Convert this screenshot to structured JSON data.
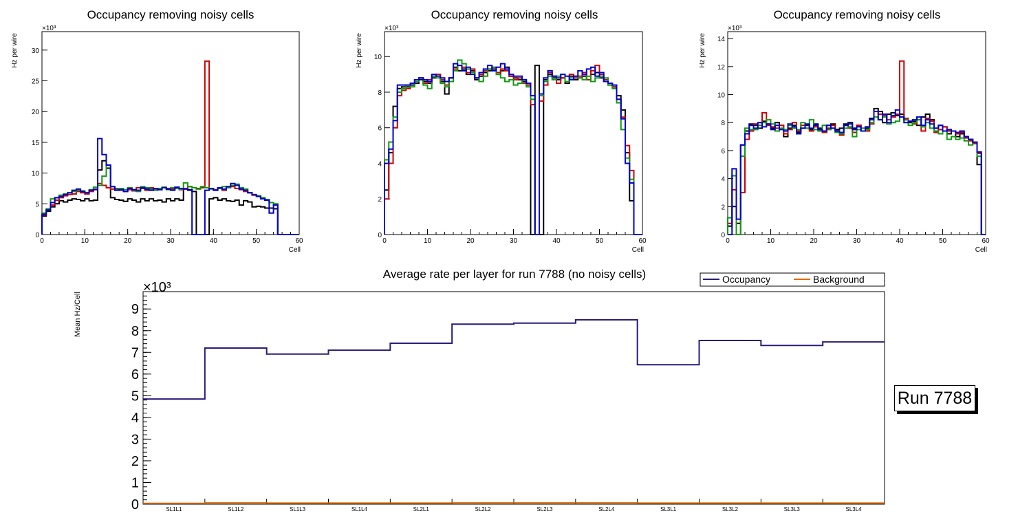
{
  "colors": {
    "black": "#000000",
    "red": "#cc0000",
    "green": "#109910",
    "blue": "#0000cc",
    "occupancy": "#2b1a7a",
    "background": "#e06a00"
  },
  "run_label": "Run 7788",
  "chart_data": [
    {
      "type": "line",
      "title": "Occupancy removing noisy cells",
      "xlabel": "Cell",
      "ylabel": "Hz per wire",
      "exponent_label": "×10³",
      "xlim": [
        0,
        60
      ],
      "ylim": [
        0,
        33
      ],
      "xticks": [
        0,
        10,
        20,
        30,
        40,
        50,
        60
      ],
      "yticks": [
        0,
        5,
        10,
        15,
        20,
        25,
        30
      ],
      "series": [
        {
          "name": "black",
          "color": "#000000",
          "values": [
            3.0,
            3.8,
            4.5,
            5.0,
            5.5,
            5.3,
            5.6,
            5.8,
            5.7,
            5.5,
            5.8,
            5.5,
            5.6,
            10.5,
            12.0,
            10.8,
            6.0,
            5.7,
            5.6,
            5.4,
            5.8,
            5.6,
            5.3,
            5.8,
            5.5,
            5.8,
            5.5,
            5.6,
            5.3,
            5.8,
            5.5,
            5.8,
            5.6,
            7.5,
            7.3,
            7.0,
            0,
            0,
            0,
            5.8,
            6.0,
            5.6,
            5.8,
            5.5,
            5.4,
            5.6,
            4.8,
            5.5,
            5.3,
            4.5,
            4.6,
            4.5,
            4.3,
            4.3,
            4.2,
            0,
            0,
            0,
            0,
            0
          ]
        },
        {
          "name": "red",
          "color": "#cc0000",
          "values": [
            3.2,
            4.0,
            4.8,
            5.6,
            6.0,
            6.3,
            6.5,
            6.6,
            7.0,
            6.8,
            6.6,
            7.0,
            7.4,
            8.3,
            8.0,
            7.6,
            7.4,
            7.5,
            7.2,
            7.0,
            7.3,
            7.1,
            7.6,
            7.5,
            7.2,
            7.6,
            7.4,
            7.3,
            7.7,
            7.5,
            7.4,
            7.6,
            7.3,
            7.5,
            7.8,
            7.6,
            7.5,
            7.6,
            28.2,
            7.5,
            7.3,
            7.5,
            7.2,
            7.6,
            7.8,
            7.5,
            7.3,
            7.0,
            6.8,
            6.4,
            6.3,
            6.0,
            5.6,
            5.2,
            4.8,
            0,
            0,
            0,
            0,
            0
          ]
        },
        {
          "name": "green",
          "color": "#109910",
          "values": [
            3.5,
            4.2,
            5.8,
            6.0,
            6.4,
            6.6,
            6.8,
            7.0,
            7.2,
            7.1,
            6.8,
            7.3,
            7.7,
            8.0,
            9.5,
            11.3,
            7.8,
            7.4,
            7.5,
            7.3,
            7.6,
            7.2,
            7.0,
            7.8,
            7.6,
            7.4,
            7.2,
            7.5,
            7.7,
            7.3,
            7.6,
            7.5,
            7.4,
            8.4,
            7.8,
            7.6,
            7.4,
            7.8,
            7.6,
            7.4,
            7.2,
            7.5,
            7.8,
            7.6,
            8.0,
            8.2,
            7.6,
            7.4,
            6.8,
            6.5,
            6.3,
            6.0,
            5.7,
            5.2,
            5.0,
            0,
            0,
            0,
            0,
            0
          ]
        },
        {
          "name": "blue",
          "color": "#0000cc",
          "values": [
            3.3,
            4.0,
            5.2,
            6.0,
            6.2,
            6.5,
            6.8,
            7.2,
            7.4,
            7.0,
            6.8,
            7.2,
            7.3,
            15.6,
            13.0,
            11.3,
            7.8,
            7.2,
            7.3,
            7.0,
            7.5,
            7.3,
            7.2,
            7.6,
            7.4,
            7.2,
            7.5,
            7.3,
            7.6,
            7.4,
            7.2,
            7.7,
            7.5,
            7.4,
            7.2,
            0,
            0,
            0,
            7.2,
            7.5,
            7.2,
            7.6,
            7.4,
            7.8,
            8.3,
            8.0,
            7.4,
            7.2,
            6.8,
            6.5,
            6.2,
            5.8,
            5.6,
            3.5,
            4.8,
            0,
            0,
            0,
            0,
            0
          ]
        }
      ]
    },
    {
      "type": "line",
      "title": "Occupancy removing noisy cells",
      "xlabel": "Cell",
      "ylabel": "Hz per wire",
      "exponent_label": "×10³",
      "xlim": [
        0,
        60
      ],
      "ylim": [
        0,
        11.4
      ],
      "xticks": [
        0,
        10,
        20,
        30,
        40,
        50,
        60
      ],
      "yticks": [
        0,
        2,
        4,
        6,
        8,
        10
      ],
      "series": [
        {
          "name": "black",
          "color": "#000000",
          "values": [
            2.5,
            4.6,
            7.2,
            8.2,
            8.3,
            8.3,
            8.4,
            8.5,
            8.7,
            8.6,
            8.5,
            8.8,
            9.0,
            8.6,
            7.9,
            8.8,
            9.4,
            9.2,
            9.3,
            9.0,
            9.2,
            8.7,
            8.9,
            9.1,
            9.2,
            9.3,
            9.0,
            9.2,
            9.4,
            8.9,
            8.8,
            8.7,
            8.6,
            8.4,
            0,
            9.5,
            0,
            8.7,
            9.0,
            8.8,
            8.7,
            8.8,
            8.5,
            8.9,
            8.7,
            8.8,
            8.9,
            8.7,
            9.0,
            9.1,
            8.8,
            8.6,
            8.4,
            8.3,
            7.8,
            7.0,
            4.6,
            1.9,
            0,
            0
          ]
        },
        {
          "name": "red",
          "color": "#cc0000",
          "values": [
            2.0,
            4.0,
            6.0,
            7.8,
            8.1,
            8.2,
            8.5,
            8.6,
            8.8,
            8.5,
            8.7,
            8.9,
            9.0,
            8.7,
            8.4,
            8.8,
            9.3,
            9.5,
            9.4,
            9.1,
            9.3,
            8.8,
            9.0,
            9.2,
            9.3,
            9.4,
            9.1,
            9.3,
            9.2,
            8.9,
            8.7,
            8.8,
            8.5,
            8.4,
            7.3,
            0,
            7.5,
            8.4,
            9.1,
            8.9,
            8.5,
            8.8,
            8.6,
            9.0,
            8.8,
            8.9,
            9.1,
            8.7,
            9.2,
            9.5,
            9.0,
            8.7,
            8.5,
            8.3,
            7.6,
            6.6,
            5.0,
            3.6,
            0,
            0
          ]
        },
        {
          "name": "green",
          "color": "#109910",
          "values": [
            4.2,
            5.2,
            6.6,
            8.0,
            8.2,
            8.4,
            8.3,
            8.6,
            8.8,
            8.4,
            8.2,
            8.9,
            8.8,
            8.5,
            8.3,
            8.6,
            9.2,
            9.8,
            9.6,
            9.3,
            9.1,
            8.8,
            8.6,
            8.9,
            9.3,
            9.4,
            9.0,
            8.8,
            8.6,
            8.7,
            8.4,
            8.5,
            8.7,
            8.3,
            7.6,
            0,
            7.8,
            8.6,
            8.9,
            8.7,
            8.9,
            9.0,
            8.6,
            8.8,
            8.9,
            8.8,
            8.7,
            8.9,
            8.6,
            8.8,
            8.9,
            8.8,
            8.4,
            8.2,
            7.4,
            5.9,
            4.3,
            3.1,
            0,
            0
          ]
        },
        {
          "name": "blue",
          "color": "#0000cc",
          "values": [
            4.0,
            4.8,
            6.4,
            8.4,
            8.4,
            8.4,
            8.5,
            8.7,
            8.8,
            8.7,
            8.6,
            9.0,
            8.9,
            8.8,
            8.6,
            8.8,
            9.6,
            9.5,
            9.2,
            9.4,
            9.0,
            8.8,
            9.1,
            9.3,
            9.5,
            9.2,
            9.4,
            9.6,
            9.3,
            9.0,
            8.9,
            8.9,
            8.7,
            8.5,
            7.8,
            0,
            7.9,
            8.8,
            9.2,
            8.9,
            8.8,
            9.0,
            8.9,
            8.7,
            8.9,
            9.2,
            9.0,
            9.3,
            9.4,
            8.9,
            9.1,
            8.6,
            8.5,
            8.4,
            7.6,
            6.5,
            4.0,
            2.9,
            0,
            0
          ]
        }
      ]
    },
    {
      "type": "line",
      "title": "Occupancy removing noisy cells",
      "xlabel": "Cell",
      "ylabel": "Hz per wire",
      "exponent_label": "×10³",
      "xlim": [
        0,
        60
      ],
      "ylim": [
        0,
        14.5
      ],
      "xticks": [
        0,
        10,
        20,
        30,
        40,
        50,
        60
      ],
      "yticks": [
        0,
        2,
        4,
        6,
        8,
        10,
        12,
        14
      ],
      "series": [
        {
          "name": "black",
          "color": "#000000",
          "values": [
            0.6,
            2.0,
            0.8,
            6.4,
            7.4,
            7.9,
            7.8,
            7.6,
            8.1,
            7.9,
            7.6,
            8.0,
            7.8,
            7.0,
            7.6,
            7.8,
            7.3,
            7.6,
            7.8,
            7.5,
            7.9,
            7.6,
            7.3,
            7.8,
            7.9,
            7.5,
            7.6,
            7.9,
            8.0,
            7.6,
            7.8,
            7.4,
            7.6,
            8.3,
            9.0,
            8.8,
            8.0,
            8.6,
            8.7,
            8.5,
            8.6,
            8.2,
            8.0,
            8.1,
            7.8,
            8.4,
            8.6,
            8.2,
            7.6,
            7.8,
            7.7,
            7.2,
            7.4,
            7.0,
            7.2,
            7.0,
            6.8,
            6.6,
            5.0,
            0
          ]
        },
        {
          "name": "red",
          "color": "#cc0000",
          "values": [
            0.8,
            3.2,
            0,
            3.0,
            6.8,
            7.4,
            7.9,
            7.8,
            8.7,
            7.8,
            7.7,
            7.6,
            7.8,
            7.2,
            7.5,
            8.0,
            7.4,
            7.8,
            7.6,
            7.4,
            7.7,
            7.5,
            7.3,
            7.6,
            7.8,
            7.3,
            7.1,
            7.8,
            7.6,
            7.3,
            7.8,
            7.6,
            7.4,
            7.9,
            8.8,
            8.6,
            8.5,
            8.2,
            8.4,
            8.6,
            12.4,
            8.3,
            8.1,
            7.9,
            8.2,
            7.4,
            8.3,
            8.1,
            7.3,
            7.5,
            7.7,
            7.4,
            7.4,
            7.2,
            7.3,
            6.9,
            6.7,
            6.5,
            5.8,
            0
          ]
        },
        {
          "name": "green",
          "color": "#109910",
          "values": [
            1.2,
            4.2,
            0,
            5.6,
            7.6,
            7.5,
            7.5,
            7.8,
            8.0,
            8.2,
            7.9,
            7.4,
            7.6,
            7.5,
            7.8,
            7.6,
            7.5,
            8.0,
            7.6,
            8.2,
            7.5,
            7.4,
            7.8,
            7.5,
            7.6,
            7.3,
            7.2,
            7.6,
            7.7,
            7.0,
            7.5,
            7.6,
            7.5,
            8.0,
            8.4,
            8.2,
            8.4,
            7.9,
            8.0,
            8.1,
            8.4,
            8.2,
            7.8,
            8.0,
            8.2,
            7.7,
            8.0,
            7.6,
            7.4,
            7.2,
            7.4,
            6.8,
            7.0,
            6.8,
            6.9,
            6.7,
            6.4,
            6.6,
            5.6,
            0
          ]
        },
        {
          "name": "blue",
          "color": "#0000cc",
          "values": [
            0,
            4.7,
            1.1,
            6.4,
            7.2,
            7.8,
            7.6,
            8.0,
            7.7,
            7.9,
            7.5,
            7.8,
            7.5,
            7.4,
            7.9,
            7.7,
            7.2,
            7.6,
            7.9,
            7.6,
            7.8,
            7.5,
            7.4,
            7.8,
            7.6,
            7.4,
            7.3,
            7.8,
            7.9,
            7.5,
            7.7,
            7.4,
            7.7,
            8.2,
            8.8,
            8.2,
            8.6,
            8.0,
            8.5,
            8.9,
            8.4,
            8.0,
            8.1,
            8.2,
            8.4,
            7.8,
            8.2,
            7.9,
            7.6,
            7.8,
            7.4,
            7.5,
            7.4,
            7.3,
            7.4,
            7.0,
            6.8,
            6.6,
            5.9,
            0
          ]
        }
      ]
    },
    {
      "type": "line",
      "title": "Average rate per layer for run 7788 (no noisy cells)",
      "xlabel": "",
      "ylabel": "Mean Hz/Cell",
      "exponent_label": "×10³",
      "ylim": [
        0,
        9.8
      ],
      "yticks": [
        0,
        1,
        2,
        3,
        4,
        5,
        6,
        7,
        8,
        9
      ],
      "categories": [
        "SL1L1",
        "SL1L2",
        "SL1L3",
        "SL1L4",
        "SL2L1",
        "SL2L2",
        "SL2L3",
        "SL2L4",
        "SL3L1",
        "SL3L2",
        "SL3L3",
        "SL3L4"
      ],
      "legend": [
        "Occupancy",
        "Background"
      ],
      "legend_position": "top-right",
      "series": [
        {
          "name": "Occupancy",
          "color": "#2b1a7a",
          "values": [
            4.85,
            7.2,
            6.92,
            7.1,
            7.42,
            8.3,
            8.35,
            8.5,
            6.43,
            7.55,
            7.32,
            7.48
          ]
        },
        {
          "name": "Background",
          "color": "#e06a00",
          "values": [
            0.04,
            0.06,
            0.05,
            0.05,
            0.05,
            0.06,
            0.06,
            0.06,
            0.05,
            0.05,
            0.05,
            0.05
          ]
        }
      ]
    }
  ]
}
